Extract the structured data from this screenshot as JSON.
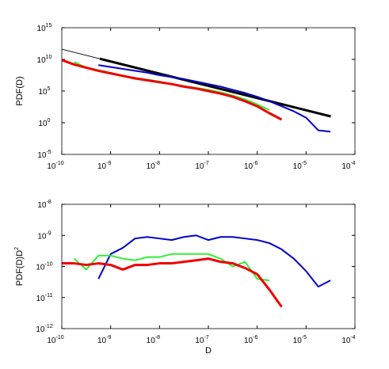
{
  "chart_data": [
    {
      "type": "line",
      "xscale": "log",
      "yscale": "log",
      "ylabel": {
        "text": "PDF(D)"
      },
      "xlim": [
        1e-10,
        0.0001
      ],
      "ylim": [
        1e-05,
        1000000000000000.0
      ],
      "xticks": [
        {
          "value": 1e-10,
          "label": "10",
          "exponent": "-10"
        },
        {
          "value": 1e-09,
          "label": "10",
          "exponent": "-9"
        },
        {
          "value": 1e-08,
          "label": "10",
          "exponent": "-8"
        },
        {
          "value": 1e-07,
          "label": "10",
          "exponent": "-7"
        },
        {
          "value": 1e-06,
          "label": "10",
          "exponent": "-6"
        },
        {
          "value": 1e-05,
          "label": "10",
          "exponent": "-5"
        },
        {
          "value": 0.0001,
          "label": "10",
          "exponent": "-4"
        }
      ],
      "yticks": [
        {
          "value": 1e-05,
          "label": "10",
          "exponent": "-5"
        },
        {
          "value": 1,
          "label": "10",
          "exponent": "0"
        },
        {
          "value": 100000.0,
          "label": "10",
          "exponent": "5"
        },
        {
          "value": 10000000000.0,
          "label": "10",
          "exponent": "10"
        },
        {
          "value": 1000000000000000.0,
          "label": "10",
          "exponent": "15"
        }
      ],
      "series": [
        {
          "color": "#000000",
          "width": 1,
          "x": [
            1e-10,
            6e-10
          ],
          "values": [
            398000000000.0,
            12600000000.0
          ]
        },
        {
          "color": "#000000",
          "width": 3,
          "x": [
            6e-10,
            3.2e-05
          ],
          "values": [
            12600000000.0,
            10
          ]
        },
        {
          "color": "#0000cc",
          "width": 2,
          "x": [
            5.62e-10,
            1e-09,
            1.78e-09,
            3.16e-09,
            5.62e-09,
            1e-08,
            1.78e-08,
            3.16e-08,
            5.62e-08,
            1e-07,
            1.78e-07,
            3.16e-07,
            5.62e-07,
            1e-06,
            1.78e-06,
            3.16e-06,
            5.62e-06,
            1e-05,
            1.78e-05,
            3.16e-05
          ],
          "values": [
            1260000000.0,
            631000000.0,
            316000000.0,
            158000000.0,
            79400000.0,
            31600000.0,
            15800000.0,
            7940000.0,
            3160000.0,
            1260000.0,
            501000.0,
            158000.0,
            50100.0,
            12600.0,
            2510,
            398,
            63.1,
            6.31,
            0.0631,
            0.0398
          ]
        },
        {
          "color": "#33ee33",
          "width": 2,
          "x": [
            1.78e-10,
            3.16e-10,
            5.62e-10,
            1e-09,
            1.78e-09,
            3.16e-09,
            5.62e-09,
            1e-08,
            1.78e-08,
            3.16e-08,
            5.62e-08,
            1e-07,
            1.78e-07,
            3.16e-07,
            5.62e-07,
            1e-06,
            1.78e-06
          ],
          "values": [
            3980000000.0,
            501000000.0,
            200000000.0,
            79400000.0,
            25100000.0,
            12600000.0,
            6310000.0,
            3160000.0,
            1260000.0,
            631000.0,
            316000.0,
            158000.0,
            63100.0,
            20000.0,
            5010,
            794,
            100
          ]
        },
        {
          "color": "#ee0000",
          "width": 3,
          "x": [
            1e-10,
            1.78e-10,
            3.16e-10,
            5.62e-10,
            1e-09,
            1.78e-09,
            3.16e-09,
            5.62e-09,
            1e-08,
            1.78e-08,
            3.16e-08,
            5.62e-08,
            1e-07,
            1.78e-07,
            3.16e-07,
            5.62e-07,
            1e-06,
            1.78e-06,
            3.16e-06
          ],
          "values": [
            7940000000.0,
            1580000000.0,
            501000000.0,
            158000000.0,
            63100000.0,
            25100000.0,
            10000000.0,
            5010000.0,
            2510000.0,
            1260000.0,
            501000.0,
            251000.0,
            100000.0,
            39800.0,
            12600.0,
            2510,
            398,
            31.6,
            3.16
          ]
        }
      ]
    },
    {
      "type": "line",
      "xscale": "log",
      "yscale": "log",
      "xlabel": "D",
      "ylabel": {
        "text": "PDF(D)D",
        "superscript": "2"
      },
      "xlim": [
        1e-10,
        0.0001
      ],
      "ylim": [
        1e-12,
        1e-08
      ],
      "xticks": [
        {
          "value": 1e-10,
          "label": "10",
          "exponent": "-10"
        },
        {
          "value": 1e-09,
          "label": "10",
          "exponent": "-9"
        },
        {
          "value": 1e-08,
          "label": "10",
          "exponent": "-8"
        },
        {
          "value": 1e-07,
          "label": "10",
          "exponent": "-7"
        },
        {
          "value": 1e-06,
          "label": "10",
          "exponent": "-6"
        },
        {
          "value": 1e-05,
          "label": "10",
          "exponent": "-5"
        },
        {
          "value": 0.0001,
          "label": "10",
          "exponent": "-4"
        }
      ],
      "yticks": [
        {
          "value": 1e-12,
          "label": "10",
          "exponent": "-12"
        },
        {
          "value": 1e-11,
          "label": "10",
          "exponent": "-11"
        },
        {
          "value": 1e-10,
          "label": "10",
          "exponent": "-10"
        },
        {
          "value": 1e-09,
          "label": "10",
          "exponent": "-9"
        },
        {
          "value": 1e-08,
          "label": "10",
          "exponent": "-8"
        }
      ],
      "series": [
        {
          "color": "#0000cc",
          "width": 2,
          "x": [
            5.62e-10,
            1e-09,
            1.78e-09,
            3.16e-09,
            5.62e-09,
            1e-08,
            1.78e-08,
            3.16e-08,
            5.62e-08,
            1e-07,
            1.78e-07,
            3.16e-07,
            5.62e-07,
            1e-06,
            1.78e-06,
            3.16e-06,
            5.62e-06,
            1e-05,
            1.78e-05,
            3.16e-05
          ],
          "values": [
            3.98e-11,
            2.51e-10,
            3.98e-10,
            7.94e-10,
            8.91e-10,
            7.94e-10,
            7.08e-10,
            8.91e-10,
            1e-09,
            7.08e-10,
            8.91e-10,
            8.91e-10,
            7.94e-10,
            7.08e-10,
            5.62e-10,
            3.55e-10,
            1.78e-10,
            7.08e-11,
            2.24e-11,
            3.55e-11
          ]
        },
        {
          "color": "#33ee33",
          "width": 2,
          "x": [
            1.78e-10,
            3.16e-10,
            5.62e-10,
            1e-09,
            1.78e-09,
            3.16e-09,
            5.62e-09,
            1e-08,
            1.78e-08,
            3.16e-08,
            5.62e-08,
            1e-07,
            1.78e-07,
            3.16e-07,
            5.62e-07,
            1e-06,
            1.78e-06
          ],
          "values": [
            1.78e-10,
            7.94e-11,
            2.24e-10,
            2.24e-10,
            1.78e-10,
            1.58e-10,
            2e-10,
            2e-10,
            2.51e-10,
            2.51e-10,
            2.51e-10,
            2.51e-10,
            1.78e-10,
            1e-10,
            1.41e-10,
            3.98e-11,
            3.55e-11
          ]
        },
        {
          "color": "#ee0000",
          "width": 3,
          "x": [
            1e-10,
            1.78e-10,
            3.16e-10,
            5.62e-10,
            1e-09,
            1.78e-09,
            3.16e-09,
            5.62e-09,
            1e-08,
            1.78e-08,
            3.16e-08,
            5.62e-08,
            1e-07,
            1.78e-07,
            3.16e-07,
            5.62e-07,
            1e-06,
            1.78e-06,
            3.16e-06
          ],
          "values": [
            1.26e-10,
            1.26e-10,
            1.12e-10,
            1.26e-10,
            1.12e-10,
            7.94e-11,
            1.12e-10,
            1.12e-10,
            1.26e-10,
            1.26e-10,
            1.41e-10,
            1.58e-10,
            1.78e-10,
            1.41e-10,
            1.26e-10,
            8.91e-11,
            5.62e-11,
            1.78e-11,
            5.01e-12
          ]
        }
      ]
    }
  ]
}
